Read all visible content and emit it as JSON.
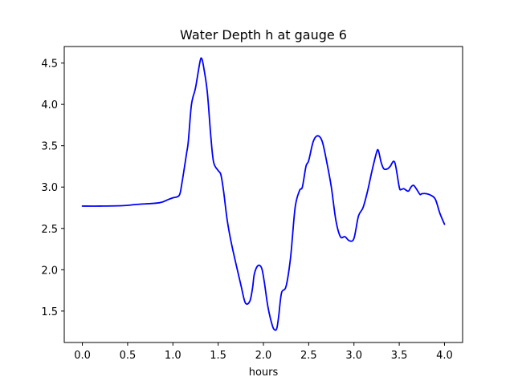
{
  "chart_data": {
    "type": "line",
    "title": "Water Depth h at gauge 6",
    "xlabel": "hours",
    "ylabel": "",
    "xlim": [
      -0.2,
      4.2
    ],
    "ylim": [
      1.12,
      4.7
    ],
    "xticks": [
      0.0,
      0.5,
      1.0,
      1.5,
      2.0,
      2.5,
      3.0,
      3.5,
      4.0
    ],
    "xtick_labels": [
      "0.0",
      "0.5",
      "1.0",
      "1.5",
      "2.0",
      "2.5",
      "3.0",
      "3.5",
      "4.0"
    ],
    "yticks": [
      1.5,
      2.0,
      2.5,
      3.0,
      3.5,
      4.0,
      4.5
    ],
    "ytick_labels": [
      "1.5",
      "2.0",
      "2.5",
      "3.0",
      "3.5",
      "4.0",
      "4.5"
    ],
    "grid": false,
    "series": [
      {
        "color": "#0000ff",
        "x": [
          0.0,
          0.2,
          0.45,
          0.6,
          0.85,
          0.95,
          1.0,
          1.07,
          1.1,
          1.15,
          1.17,
          1.2,
          1.22,
          1.25,
          1.3,
          1.32,
          1.34,
          1.38,
          1.42,
          1.45,
          1.5,
          1.53,
          1.56,
          1.6,
          1.65,
          1.75,
          1.8,
          1.85,
          1.88,
          1.9,
          1.94,
          1.98,
          2.01,
          2.05,
          2.1,
          2.13,
          2.15,
          2.17,
          2.2,
          2.25,
          2.3,
          2.35,
          2.4,
          2.43,
          2.47,
          2.5,
          2.55,
          2.6,
          2.65,
          2.7,
          2.75,
          2.8,
          2.85,
          2.9,
          2.95,
          3.0,
          3.05,
          3.1,
          3.15,
          3.2,
          3.25,
          3.27,
          3.3,
          3.33,
          3.37,
          3.4,
          3.45,
          3.5,
          3.52,
          3.55,
          3.6,
          3.63,
          3.66,
          3.7,
          3.73,
          3.75,
          3.8,
          3.85,
          3.9,
          3.95,
          4.0
        ],
        "y": [
          2.77,
          2.77,
          2.775,
          2.79,
          2.81,
          2.85,
          2.87,
          2.9,
          3.05,
          3.4,
          3.55,
          3.95,
          4.08,
          4.2,
          4.52,
          4.55,
          4.45,
          4.15,
          3.6,
          3.3,
          3.2,
          3.15,
          2.95,
          2.6,
          2.3,
          1.82,
          1.6,
          1.62,
          1.78,
          1.95,
          2.05,
          2.02,
          1.85,
          1.55,
          1.32,
          1.27,
          1.3,
          1.45,
          1.72,
          1.8,
          2.15,
          2.75,
          2.96,
          3.0,
          3.25,
          3.32,
          3.55,
          3.62,
          3.55,
          3.3,
          3.0,
          2.6,
          2.4,
          2.4,
          2.35,
          2.38,
          2.65,
          2.75,
          2.95,
          3.2,
          3.42,
          3.44,
          3.3,
          3.22,
          3.22,
          3.25,
          3.3,
          3.0,
          2.97,
          2.98,
          2.95,
          3.0,
          3.02,
          2.96,
          2.91,
          2.92,
          2.92,
          2.9,
          2.85,
          2.68,
          2.55
        ]
      }
    ]
  }
}
